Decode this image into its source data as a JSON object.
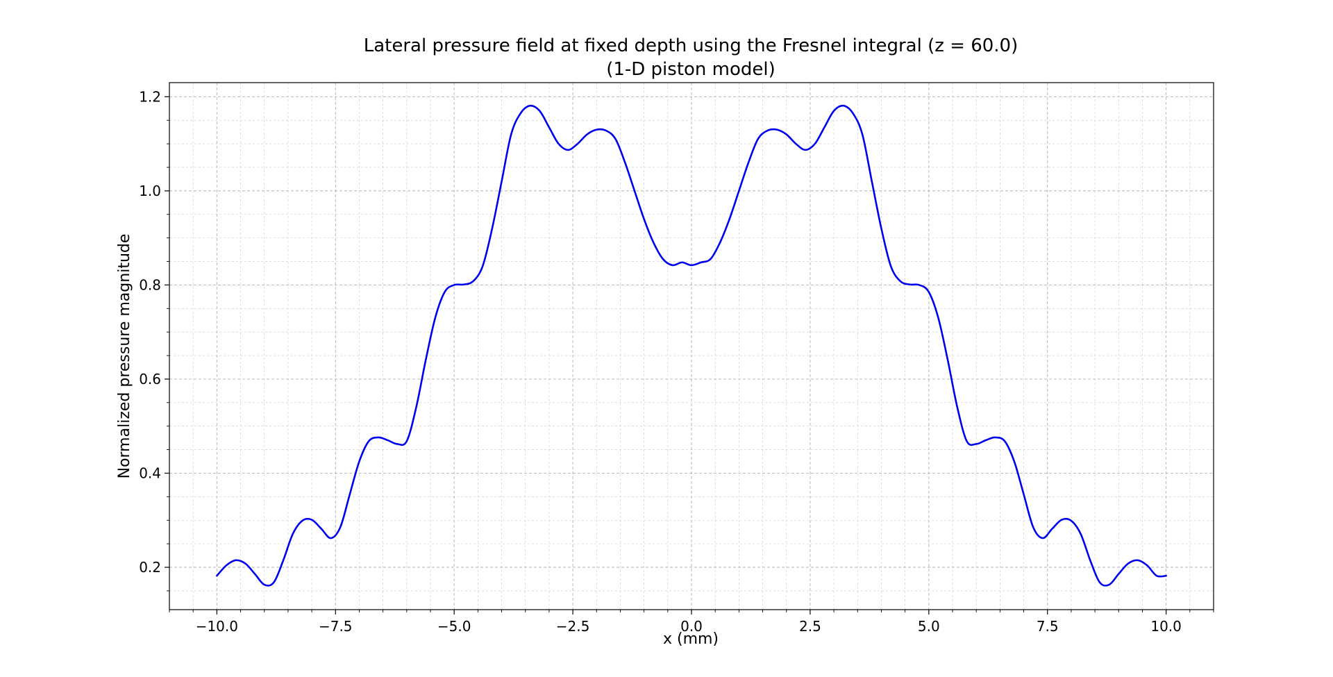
{
  "chart_data": {
    "type": "line",
    "title": "Lateral pressure field at fixed depth using the Fresnel integral (z = 60.0)",
    "subtitle": "(1-D piston model)",
    "xlabel": "x (mm)",
    "ylabel": "Normalized pressure magnitude",
    "xlim": [
      -11,
      11
    ],
    "ylim": [
      0.11,
      1.23
    ],
    "x_major_ticks": [
      -10,
      -7.5,
      -5,
      -2.5,
      0,
      2.5,
      5,
      7.5,
      10
    ],
    "x_tick_labels": [
      "−10.0",
      "−7.5",
      "−5.0",
      "−2.5",
      "0.0",
      "2.5",
      "5.0",
      "7.5",
      "10.0"
    ],
    "x_minor_step": 0.5,
    "y_major_ticks": [
      0.2,
      0.4,
      0.6,
      0.8,
      1.0,
      1.2
    ],
    "y_tick_labels": [
      "0.2",
      "0.4",
      "0.6",
      "0.8",
      "1.0",
      "1.2"
    ],
    "y_minor_step": 0.05,
    "grid": true,
    "series": [
      {
        "color": "#0000ee",
        "x": [
          -10,
          -9.8,
          -9.6,
          -9.4,
          -9.2,
          -9.0,
          -8.8,
          -8.6,
          -8.4,
          -8.2,
          -8.0,
          -7.8,
          -7.6,
          -7.4,
          -7.2,
          -7.0,
          -6.8,
          -6.6,
          -6.4,
          -6.2,
          -6.0,
          -5.8,
          -5.6,
          -5.4,
          -5.2,
          -5.0,
          -4.8,
          -4.6,
          -4.4,
          -4.2,
          -4.0,
          -3.8,
          -3.6,
          -3.4,
          -3.2,
          -3.0,
          -2.8,
          -2.6,
          -2.4,
          -2.2,
          -2.0,
          -1.8,
          -1.6,
          -1.4,
          -1.2,
          -1.0,
          -0.8,
          -0.6,
          -0.4,
          -0.2,
          0.0,
          0.2,
          0.4,
          0.6,
          0.8,
          1.0,
          1.2,
          1.4,
          1.6,
          1.8,
          2.0,
          2.2,
          2.4,
          2.6,
          2.8,
          3.0,
          3.2,
          3.4,
          3.6,
          3.8,
          4.0,
          4.2,
          4.4,
          4.6,
          4.8,
          5.0,
          5.2,
          5.4,
          5.6,
          5.8,
          6.0,
          6.2,
          6.4,
          6.6,
          6.8,
          7.0,
          7.2,
          7.4,
          7.6,
          7.8,
          8.0,
          8.2,
          8.4,
          8.6,
          8.8,
          9.0,
          9.2,
          9.4,
          9.6,
          9.8,
          10.0
        ],
        "y": [
          0.182,
          0.204,
          0.215,
          0.208,
          0.186,
          0.163,
          0.168,
          0.215,
          0.271,
          0.299,
          0.301,
          0.282,
          0.262,
          0.285,
          0.355,
          0.425,
          0.468,
          0.476,
          0.47,
          0.462,
          0.468,
          0.54,
          0.64,
          0.73,
          0.785,
          0.8,
          0.801,
          0.808,
          0.84,
          0.92,
          1.02,
          1.12,
          1.165,
          1.181,
          1.17,
          1.135,
          1.1,
          1.087,
          1.1,
          1.12,
          1.13,
          1.128,
          1.11,
          1.06,
          1.0,
          0.94,
          0.89,
          0.855,
          0.842,
          0.848,
          0.842,
          0.848,
          0.855,
          0.89,
          0.94,
          1.0,
          1.06,
          1.11,
          1.128,
          1.13,
          1.12,
          1.1,
          1.087,
          1.1,
          1.135,
          1.17,
          1.181,
          1.165,
          1.12,
          1.02,
          0.92,
          0.84,
          0.808,
          0.801,
          0.8,
          0.785,
          0.73,
          0.64,
          0.54,
          0.468,
          0.462,
          0.47,
          0.476,
          0.468,
          0.425,
          0.355,
          0.285,
          0.262,
          0.282,
          0.301,
          0.299,
          0.271,
          0.215,
          0.168,
          0.163,
          0.186,
          0.208,
          0.215,
          0.204,
          0.182,
          0.182
        ]
      }
    ]
  }
}
